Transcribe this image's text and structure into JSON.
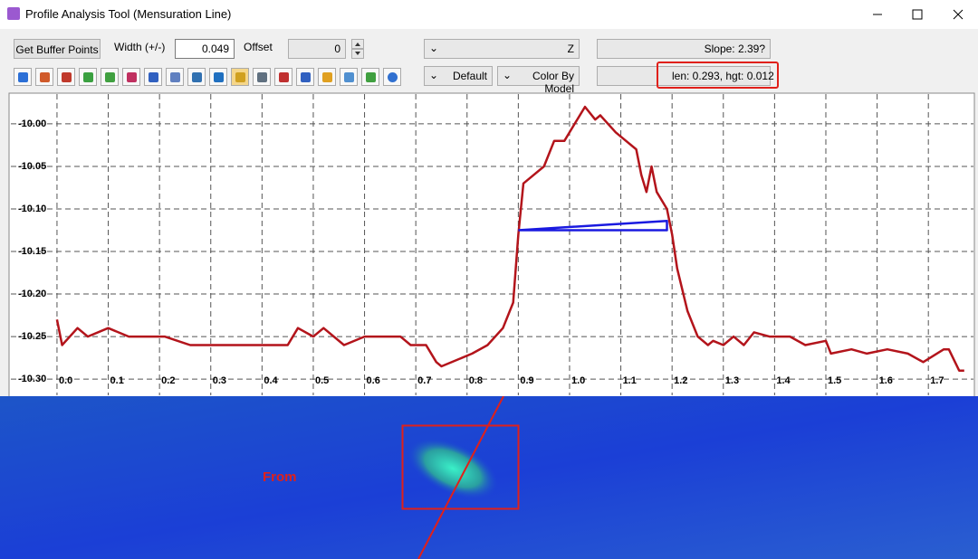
{
  "window": {
    "title": "Profile Analysis Tool (Mensuration Line)"
  },
  "toolbar": {
    "buffer_button": "Get Buffer Points",
    "width_label": "Width (+/-)",
    "width_value": "0.049",
    "offset_label": "Offset",
    "offset_value": "0",
    "axis_field": "Z",
    "slope": "Slope:  2.39?",
    "style_field": "Default",
    "color_field": "Color By Model",
    "measure": "len: 0.293, hgt: 0.012"
  },
  "map": {
    "label": "From"
  },
  "chart_data": {
    "type": "line",
    "xlim": [
      -0.09,
      1.788
    ],
    "ylim": [
      -10.319,
      -9.965
    ],
    "grid": true,
    "xticks": [
      {
        "value": 0,
        "label": "0.0"
      },
      0.1,
      0.2,
      0.3,
      0.4,
      0.5,
      0.6,
      0.7,
      0.8,
      0.9,
      {
        "value": 1,
        "label": "1.0"
      },
      1.1,
      1.2,
      1.3,
      1.4,
      1.5,
      1.6,
      1.7
    ],
    "yticks": [
      {
        "value": -10.3,
        "label": "-10.30"
      },
      {
        "value": -10.25,
        "label": "-10.25"
      },
      {
        "value": -10.2,
        "label": "-10.20"
      },
      {
        "value": -10.15,
        "label": "-10.15"
      },
      {
        "value": -10.1,
        "label": "-10.10"
      },
      {
        "value": -10.05,
        "label": "-10.05"
      },
      {
        "value": -10,
        "label": "-10.00"
      }
    ],
    "series": [
      {
        "color": "#b3141b",
        "x": [
          0.0,
          0.01,
          0.04,
          0.06,
          0.1,
          0.14,
          0.21,
          0.26,
          0.31,
          0.37,
          0.45,
          0.47,
          0.5,
          0.52,
          0.56,
          0.6,
          0.67,
          0.69,
          0.72,
          0.74,
          0.75,
          0.81,
          0.84,
          0.87,
          0.89,
          0.9,
          0.91,
          0.93,
          0.95,
          0.97,
          0.99,
          1.01,
          1.03,
          1.05,
          1.06,
          1.09,
          1.11,
          1.13,
          1.14,
          1.15,
          1.16,
          1.17,
          1.19,
          1.2,
          1.21,
          1.23,
          1.25,
          1.27,
          1.28,
          1.3,
          1.32,
          1.34,
          1.36,
          1.39,
          1.43,
          1.46,
          1.5,
          1.51,
          1.55,
          1.58,
          1.62,
          1.66,
          1.69,
          1.73,
          1.74,
          1.76,
          1.77
        ],
        "values": [
          -10.23,
          -10.26,
          -10.24,
          -10.25,
          -10.24,
          -10.25,
          -10.25,
          -10.26,
          -10.26,
          -10.26,
          -10.26,
          -10.24,
          -10.25,
          -10.24,
          -10.26,
          -10.25,
          -10.25,
          -10.26,
          -10.26,
          -10.28,
          -10.285,
          -10.27,
          -10.26,
          -10.24,
          -10.21,
          -10.13,
          -10.07,
          -10.06,
          -10.05,
          -10.02,
          -10.02,
          -10.0,
          -9.98,
          -9.995,
          -9.99,
          -10.01,
          -10.02,
          -10.03,
          -10.06,
          -10.08,
          -10.05,
          -10.08,
          -10.1,
          -10.13,
          -10.17,
          -10.22,
          -10.25,
          -10.26,
          -10.255,
          -10.26,
          -10.25,
          -10.26,
          -10.245,
          -10.25,
          -10.25,
          -10.26,
          -10.255,
          -10.27,
          -10.265,
          -10.27,
          -10.265,
          -10.27,
          -10.28,
          -10.265,
          -10.265,
          -10.29,
          -10.29
        ]
      },
      {
        "color": "#1a1ae0",
        "x": [
          0.9,
          1.19,
          1.19,
          0.9
        ],
        "values": [
          -10.125,
          -10.114,
          -10.125,
          -10.125
        ]
      }
    ]
  }
}
